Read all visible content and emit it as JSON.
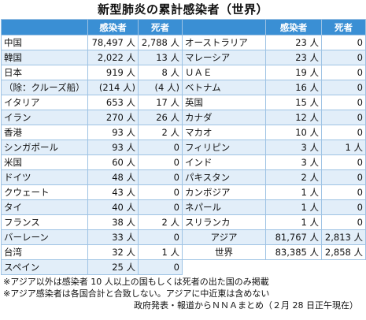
{
  "title": "新型肺炎の累計感染者（世界）",
  "headers": {
    "infected": "感染者",
    "deaths": "死者"
  },
  "left": [
    {
      "name": "中国",
      "infected": "78,497 人",
      "deaths": "2,788 人"
    },
    {
      "name": "韓国",
      "infected": "2,022 人",
      "deaths": "13 人"
    },
    {
      "name": "日本",
      "infected": "919 人",
      "deaths": "8 人"
    },
    {
      "name": "（除：クルーズ船）",
      "infected": "(214 人)",
      "deaths": "(4 人)"
    },
    {
      "name": "イタリア",
      "infected": "653 人",
      "deaths": "17 人"
    },
    {
      "name": "イラン",
      "infected": "270 人",
      "deaths": "26 人"
    },
    {
      "name": "香港",
      "infected": "93 人",
      "deaths": "2 人"
    },
    {
      "name": "シンガポール",
      "infected": "93 人",
      "deaths": "0"
    },
    {
      "name": "米国",
      "infected": "60 人",
      "deaths": "0"
    },
    {
      "name": "ドイツ",
      "infected": "48 人",
      "deaths": "0"
    },
    {
      "name": "クウェート",
      "infected": "43 人",
      "deaths": "0"
    },
    {
      "name": "タイ",
      "infected": "40 人",
      "deaths": "0"
    },
    {
      "name": "フランス",
      "infected": "38 人",
      "deaths": "2 人"
    },
    {
      "name": "バーレーン",
      "infected": "33 人",
      "deaths": "0"
    },
    {
      "name": "台湾",
      "infected": "32 人",
      "deaths": "1 人"
    },
    {
      "name": "スペイン",
      "infected": "25 人",
      "deaths": "0"
    }
  ],
  "right": [
    {
      "name": "オーストラリア",
      "infected": "23 人",
      "deaths": "0"
    },
    {
      "name": "マレーシア",
      "infected": "23 人",
      "deaths": "0"
    },
    {
      "name": "ＵＡＥ",
      "infected": "19 人",
      "deaths": "0"
    },
    {
      "name": "ベトナム",
      "infected": "16 人",
      "deaths": "0"
    },
    {
      "name": "英国",
      "infected": "15 人",
      "deaths": "0"
    },
    {
      "name": "カナダ",
      "infected": "12 人",
      "deaths": "0"
    },
    {
      "name": "マカオ",
      "infected": "10 人",
      "deaths": "0"
    },
    {
      "name": "フィリピン",
      "infected": "3 人",
      "deaths": "1 人"
    },
    {
      "name": "インド",
      "infected": "3 人",
      "deaths": "0"
    },
    {
      "name": "パキスタン",
      "infected": "2 人",
      "deaths": "0"
    },
    {
      "name": "カンボジア",
      "infected": "1 人",
      "deaths": "0"
    },
    {
      "name": "ネパール",
      "infected": "1 人",
      "deaths": "0"
    },
    {
      "name": "スリランカ",
      "infected": "1 人",
      "deaths": "0"
    },
    {
      "name": "アジア",
      "infected": "81,767 人",
      "deaths": "2,813 人"
    },
    {
      "name": "世界",
      "infected": "83,385 人",
      "deaths": "2,858 人"
    }
  ],
  "notes": [
    "※アジア以外は感染者 10 人以上の国もしくは死者の出た国のみ掲載",
    "※アジア感染者は各国合計と合致しない。アジアに中近東は含めない"
  ],
  "source": "政府発表・報道からＮＮＡまとめ（２月 28 日正午現在）"
}
